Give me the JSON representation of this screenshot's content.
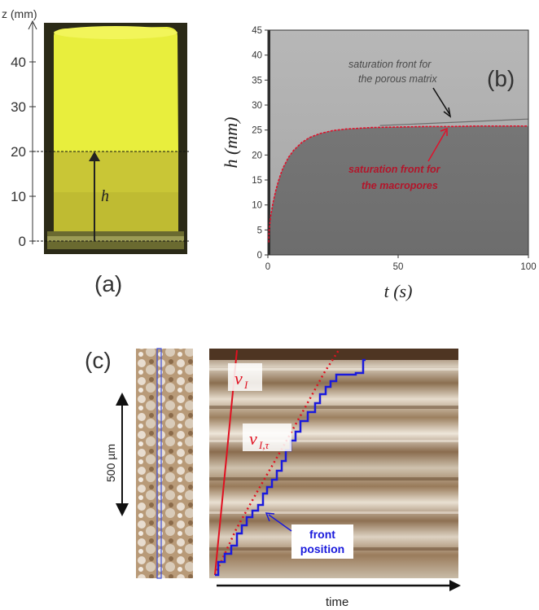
{
  "panel_a": {
    "label": "(a)",
    "axis_title": "z (mm)",
    "ticks": [
      "0",
      "10",
      "20",
      "30",
      "40"
    ],
    "height_symbol": "h",
    "colors": {
      "dry_foam": "#e9ee3c",
      "wet_foam": "#c5c233",
      "background": "#2a2a1a"
    }
  },
  "panel_b": {
    "label": "(b)",
    "annotation_matrix": [
      "saturation front for",
      "the porous matrix"
    ],
    "annotation_macropores": [
      "saturation front for",
      "the macropores"
    ],
    "colors": {
      "macropore_front": "#e0112b",
      "matrix_annotation": "#555555",
      "macropore_annotation": "#b3152a"
    }
  },
  "panel_c": {
    "label": "(c)",
    "scale_label": "500 µm",
    "time_label": "time",
    "vI_label": "v",
    "vI_sub": "I",
    "vIt_label": "v",
    "vIt_sub": "I,τ",
    "front_label": [
      "front",
      "position"
    ],
    "colors": {
      "front": "#1a1adc",
      "velocity": "#e01020"
    }
  },
  "chart_data": {
    "type": "line",
    "xlabel": "t (s)",
    "ylabel": "h (mm)",
    "xlim": [
      0,
      100
    ],
    "ylim": [
      0,
      45
    ],
    "xticks": [
      "0",
      "50",
      "100"
    ],
    "yticks": [
      "0",
      "5",
      "10",
      "15",
      "20",
      "25",
      "30",
      "35",
      "40",
      "45"
    ],
    "grid": false,
    "series": [
      {
        "x": [
          0.3,
          0.5,
          1,
          2,
          3,
          4,
          5,
          6,
          8,
          10,
          13,
          16,
          20,
          25,
          30,
          40,
          50,
          60,
          70,
          80,
          90,
          100
        ],
        "y": [
          2.5,
          5,
          7.5,
          10.5,
          12.8,
          14.7,
          16.3,
          17.6,
          19.6,
          21,
          22.5,
          23.5,
          24.3,
          24.9,
          25.2,
          25.5,
          25.6,
          25.7,
          25.7,
          25.8,
          25.8,
          25.8
        ]
      },
      {
        "x": [
          43,
          100
        ],
        "y": [
          25.9,
          27.2
        ]
      }
    ]
  }
}
